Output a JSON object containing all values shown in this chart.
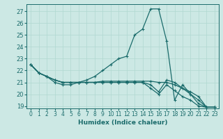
{
  "xlabel": "Humidex (Indice chaleur)",
  "bg_color": "#cce8e4",
  "grid_color": "#b0d8d0",
  "line_color": "#1a6b6b",
  "xlim": [
    -0.5,
    23.5
  ],
  "ylim": [
    18.8,
    27.6
  ],
  "yticks": [
    19,
    20,
    21,
    22,
    23,
    24,
    25,
    26,
    27
  ],
  "xticks": [
    0,
    1,
    2,
    3,
    4,
    5,
    6,
    7,
    8,
    9,
    10,
    11,
    12,
    13,
    14,
    15,
    16,
    17,
    18,
    19,
    20,
    21,
    22,
    23
  ],
  "series": [
    [
      22.5,
      21.8,
      21.5,
      21.0,
      20.8,
      20.8,
      21.0,
      21.2,
      21.5,
      22.0,
      22.5,
      23.0,
      23.2,
      25.0,
      25.5,
      27.2,
      27.2,
      24.5,
      19.5,
      20.8,
      20.0,
      19.5,
      18.9,
      18.9
    ],
    [
      22.5,
      21.8,
      21.5,
      21.2,
      21.0,
      21.0,
      21.0,
      21.0,
      21.0,
      21.1,
      21.1,
      21.1,
      21.1,
      21.1,
      21.1,
      21.1,
      21.0,
      21.0,
      20.8,
      20.5,
      20.2,
      19.8,
      18.9,
      18.9
    ],
    [
      22.5,
      21.8,
      21.5,
      21.2,
      21.0,
      21.0,
      21.0,
      21.0,
      21.0,
      21.0,
      21.0,
      21.0,
      21.0,
      21.0,
      21.0,
      20.8,
      20.2,
      21.2,
      21.0,
      20.5,
      20.0,
      19.2,
      18.9,
      18.9
    ],
    [
      22.5,
      21.8,
      21.5,
      21.2,
      21.0,
      21.0,
      21.0,
      21.0,
      21.0,
      21.0,
      21.0,
      21.0,
      21.0,
      21.0,
      21.0,
      20.5,
      20.0,
      20.8,
      20.3,
      19.8,
      19.5,
      19.0,
      18.9,
      18.9
    ]
  ]
}
